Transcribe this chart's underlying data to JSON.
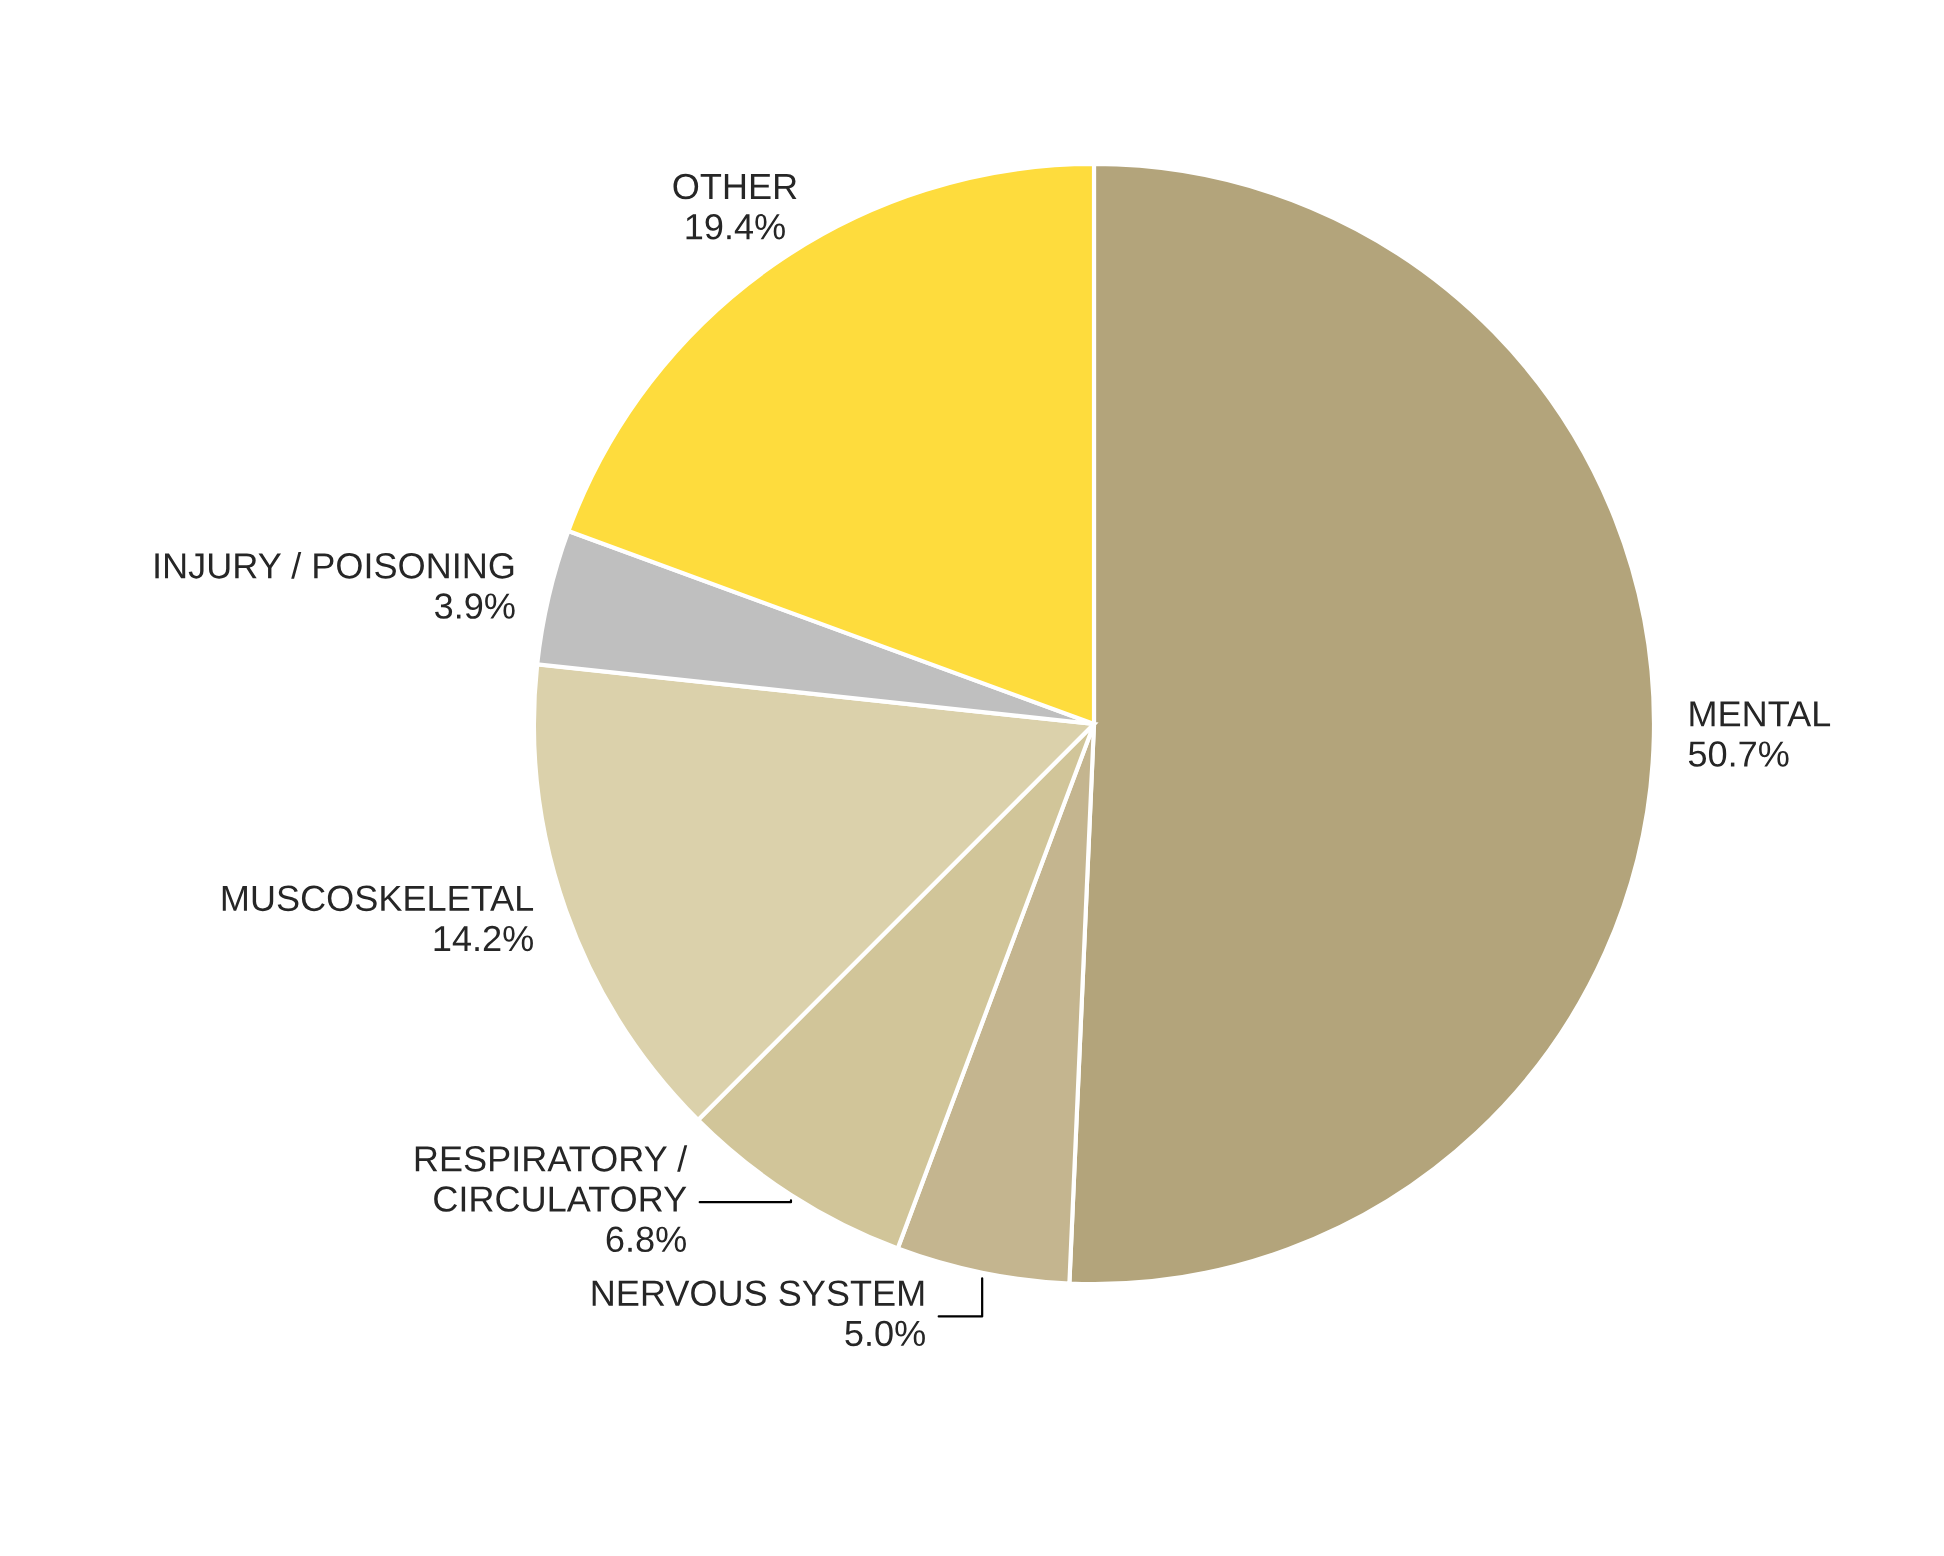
{
  "chart_data": {
    "type": "pie",
    "categories": [
      "MENTAL",
      "NERVOUS SYSTEM",
      "RESPIRATORY /\nCIRCULATORY",
      "MUSCOSKELETAL",
      "INJURY / POISONING",
      "OTHER"
    ],
    "values": [
      50.7,
      5.0,
      6.8,
      14.2,
      3.9,
      19.4
    ],
    "colors": [
      "#b3a47b",
      "#c4b58f",
      "#d1c599",
      "#dbd1ab",
      "#bfbfbf",
      "#fedc3d"
    ],
    "value_labels": [
      "50.7%",
      "5.0%",
      "6.8%",
      "14.2%",
      "3.9%",
      "19.4%"
    ]
  }
}
